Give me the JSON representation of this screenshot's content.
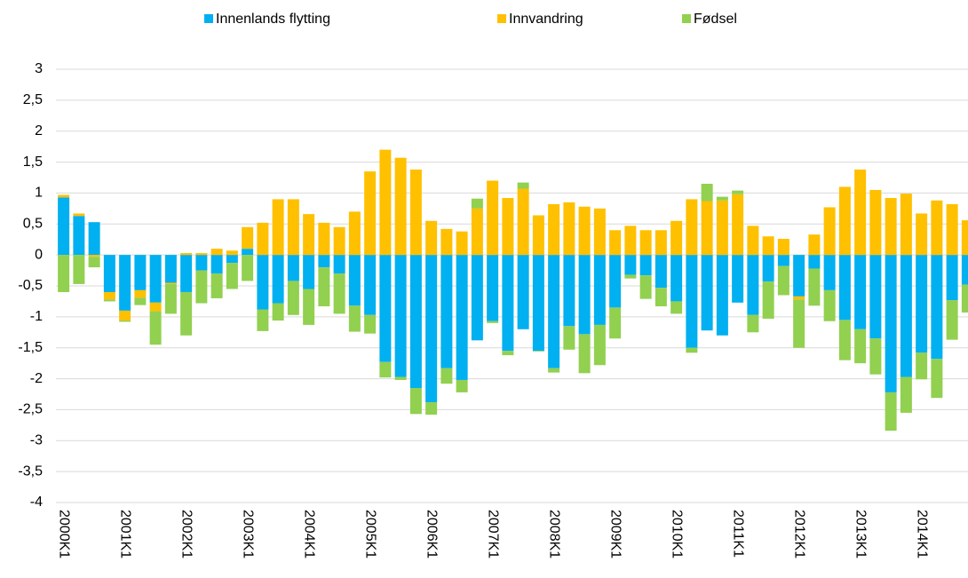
{
  "chart_data": {
    "type": "stacked_bar",
    "categories": [
      "2000K1",
      null,
      null,
      null,
      "2001K1",
      null,
      null,
      null,
      "2002K1",
      null,
      null,
      null,
      "2003K1",
      null,
      null,
      null,
      "2004K1",
      null,
      null,
      null,
      "2005K1",
      null,
      null,
      null,
      "2006K1",
      null,
      null,
      null,
      "2007K1",
      null,
      null,
      null,
      "2008K1",
      null,
      null,
      null,
      "2009K1",
      null,
      null,
      null,
      "2010K1",
      null,
      null,
      null,
      "2011K1",
      null,
      null,
      null,
      "2012K1",
      null,
      null,
      null,
      "2013K1",
      null,
      null,
      null,
      "2014K1",
      null,
      null,
      null
    ],
    "series": [
      {
        "name": "Innenlands flytting",
        "color": "#00b0f0",
        "values": [
          0.93,
          0.63,
          0.53,
          -0.6,
          -0.9,
          -0.57,
          -0.77,
          -0.45,
          -0.6,
          -0.25,
          -0.3,
          -0.13,
          0.1,
          -0.88,
          -0.78,
          -0.42,
          -0.55,
          -0.2,
          -0.3,
          -0.82,
          -0.97,
          -1.73,
          -1.97,
          -2.15,
          -2.38,
          -1.83,
          -2.02,
          -1.38,
          -1.07,
          -1.55,
          -1.2,
          -1.55,
          -1.83,
          -1.15,
          -1.28,
          -1.13,
          -0.85,
          -0.32,
          -0.33,
          -0.53,
          -0.75,
          -1.5,
          -1.22,
          -1.3,
          -0.77,
          -0.97,
          -0.43,
          -0.18,
          -0.67,
          -0.22,
          -0.57,
          -1.05,
          -1.2,
          -1.35,
          -2.22,
          -1.97,
          -1.58,
          -1.68,
          -0.73,
          -0.48
        ]
      },
      {
        "name": "Innvandring",
        "color": "#ffc000",
        "values": [
          0.04,
          0.04,
          -0.03,
          -0.12,
          -0.16,
          -0.12,
          -0.14,
          -0.02,
          0.03,
          0.03,
          0.1,
          0.07,
          0.35,
          0.52,
          0.9,
          0.9,
          0.66,
          0.52,
          0.45,
          0.7,
          1.35,
          1.7,
          1.57,
          1.38,
          0.55,
          0.42,
          0.38,
          0.75,
          1.2,
          0.92,
          1.07,
          0.64,
          0.82,
          0.85,
          0.78,
          0.75,
          0.4,
          0.47,
          0.4,
          0.4,
          0.55,
          0.9,
          0.87,
          0.88,
          0.98,
          0.47,
          0.3,
          0.26,
          -0.05,
          0.33,
          0.77,
          1.1,
          1.38,
          1.05,
          0.92,
          0.99,
          0.67,
          0.88,
          0.82,
          0.56
        ]
      },
      {
        "name": "Fødsel",
        "color": "#92d050",
        "values": [
          -0.6,
          -0.47,
          -0.17,
          -0.03,
          -0.02,
          -0.12,
          -0.54,
          -0.48,
          -0.7,
          -0.53,
          -0.4,
          -0.42,
          -0.42,
          -0.35,
          -0.28,
          -0.55,
          -0.58,
          -0.63,
          -0.65,
          -0.42,
          -0.3,
          -0.25,
          -0.05,
          -0.42,
          -0.2,
          -0.25,
          -0.2,
          0.16,
          -0.03,
          -0.07,
          0.1,
          -0.01,
          -0.07,
          -0.38,
          -0.63,
          -0.65,
          -0.5,
          -0.06,
          -0.38,
          -0.3,
          -0.2,
          -0.08,
          0.28,
          0.06,
          0.06,
          -0.28,
          -0.6,
          -0.47,
          -0.78,
          -0.6,
          -0.5,
          -0.65,
          -0.55,
          -0.58,
          -0.62,
          -0.58,
          -0.43,
          -0.63,
          -0.64,
          -0.45
        ]
      }
    ],
    "ylim": [
      -4,
      3
    ],
    "yticks": [
      3,
      {
        "value": 2.5,
        "label": "2,5"
      },
      2,
      {
        "value": 1.5,
        "label": "1,5"
      },
      1,
      {
        "value": 0.5,
        "label": "0,5"
      },
      0,
      {
        "value": -0.5,
        "label": "-0,5"
      },
      -1,
      {
        "value": -1.5,
        "label": "-1,5"
      },
      -2,
      {
        "value": -2.5,
        "label": "-2,5"
      },
      -3,
      {
        "value": -3.5,
        "label": "-3,5"
      },
      -4
    ],
    "grid": true
  }
}
